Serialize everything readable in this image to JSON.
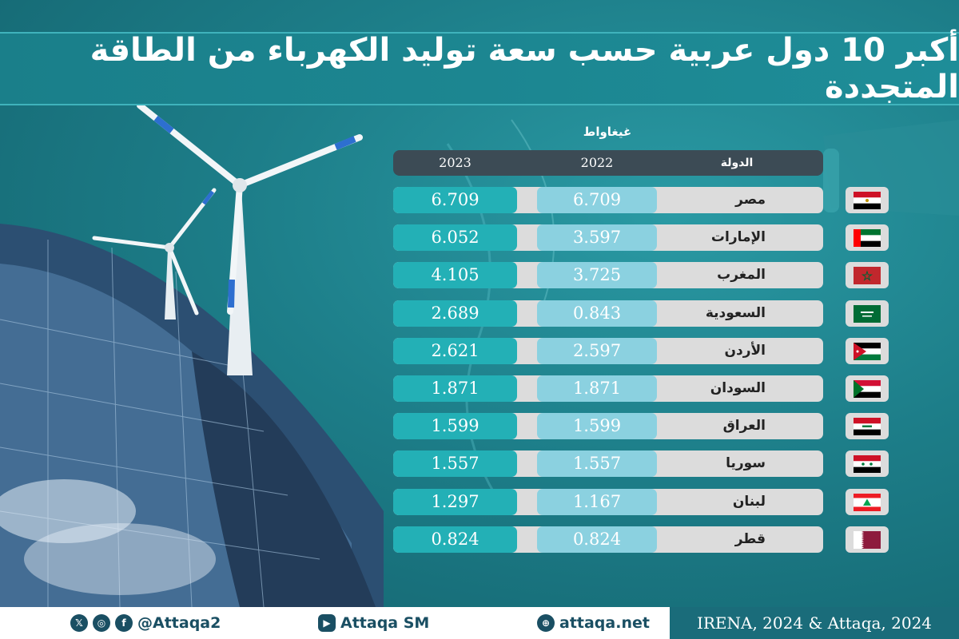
{
  "title": "أكبر 10 دول عربية حسب سعة توليد الكهرباء من الطاقة المتجددة",
  "unit": "غيغاواط",
  "table": {
    "headers": {
      "country": "الدولة",
      "y2022": "2022",
      "y2023": "2023"
    },
    "rows": [
      {
        "country": "مصر",
        "v2022": "6.709",
        "v2023": "6.709",
        "flag": "egypt"
      },
      {
        "country": "الإمارات",
        "v2022": "3.597",
        "v2023": "6.052",
        "flag": "uae"
      },
      {
        "country": "المغرب",
        "v2022": "3.725",
        "v2023": "4.105",
        "flag": "morocco"
      },
      {
        "country": "السعودية",
        "v2022": "0.843",
        "v2023": "2.689",
        "flag": "saudi"
      },
      {
        "country": "الأردن",
        "v2022": "2.597",
        "v2023": "2.621",
        "flag": "jordan"
      },
      {
        "country": "السودان",
        "v2022": "1.871",
        "v2023": "1.871",
        "flag": "sudan"
      },
      {
        "country": "العراق",
        "v2022": "1.599",
        "v2023": "1.599",
        "flag": "iraq"
      },
      {
        "country": "سوريا",
        "v2022": "1.557",
        "v2023": "1.557",
        "flag": "syria"
      },
      {
        "country": "لبنان",
        "v2022": "1.167",
        "v2023": "1.297",
        "flag": "lebanon"
      },
      {
        "country": "قطر",
        "v2022": "0.824",
        "v2023": "0.824",
        "flag": "qatar"
      }
    ]
  },
  "footer": {
    "social_handle": "@Attaqa2",
    "youtube": "Attaqa SM",
    "website": "attaqa.net",
    "source": "IRENA, 2024 & Attaqa, 2024"
  },
  "colors": {
    "col2023": "#23b0b6",
    "col2022": "#8bd1e0",
    "header": "#3c4b55",
    "row": "#dcdcdc"
  }
}
